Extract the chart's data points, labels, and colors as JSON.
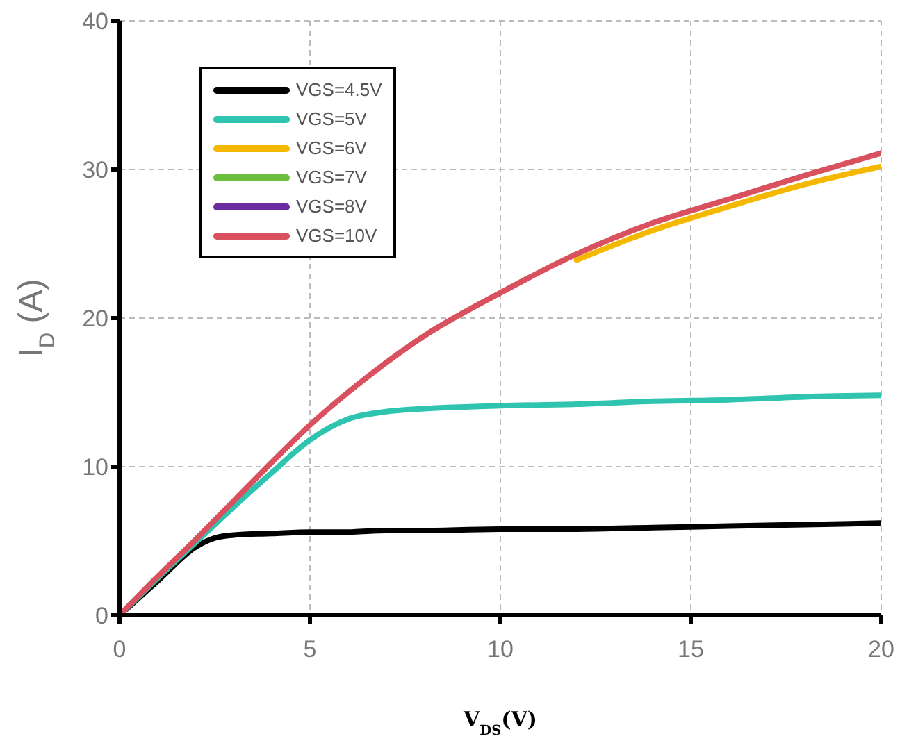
{
  "chart_data": {
    "type": "line",
    "xlabel": "V$_{DS}$(V)",
    "ylabel": "I$_{D}$ (A)",
    "x": [
      0,
      1,
      2,
      2.5,
      3,
      4,
      5,
      6,
      7,
      8,
      10,
      12,
      14,
      16,
      18,
      20
    ],
    "series": [
      {
        "name": "VGS=4.5V",
        "color": "#000000",
        "values": [
          0,
          2.3,
          4.6,
          5.2,
          5.4,
          5.5,
          5.6,
          5.6,
          5.7,
          5.7,
          5.8,
          5.8,
          5.9,
          6.0,
          6.1,
          6.2
        ]
      },
      {
        "name": "VGS=5V",
        "color": "#2ec4b0",
        "values": [
          0,
          2.5,
          4.9,
          6.1,
          7.3,
          9.6,
          11.8,
          13.2,
          13.7,
          13.9,
          14.1,
          14.2,
          14.4,
          14.5,
          14.7,
          14.8
        ]
      },
      {
        "name": "VGS=6V",
        "color": "#f5b800",
        "values": [
          null,
          null,
          null,
          null,
          null,
          null,
          null,
          null,
          null,
          null,
          null,
          23.9,
          25.9,
          27.5,
          29.0,
          30.2
        ]
      },
      {
        "name": "VGS=7V",
        "color": "#6cbf3c",
        "values": [
          null,
          null,
          null,
          null,
          null,
          null,
          null,
          null,
          null,
          null,
          null,
          null,
          null,
          null,
          null,
          null
        ]
      },
      {
        "name": "VGS=8V",
        "color": "#6a2ca0",
        "values": [
          null,
          null,
          null,
          null,
          null,
          null,
          null,
          null,
          null,
          null,
          null,
          null,
          null,
          null,
          null,
          null
        ]
      },
      {
        "name": "VGS=10V",
        "color": "#d9505e",
        "values": [
          0,
          2.6,
          5.1,
          6.4,
          7.7,
          10.3,
          12.8,
          15.0,
          17.0,
          18.8,
          21.7,
          24.3,
          26.4,
          28.0,
          29.6,
          31.1
        ]
      }
    ],
    "xlim": [
      0,
      20
    ],
    "xticks": [
      0,
      5,
      10,
      15,
      20
    ],
    "ylim": [
      0,
      40
    ],
    "yticks": [
      0,
      10,
      20,
      30,
      40
    ],
    "grid": true,
    "legend": "top left",
    "marker": "none",
    "line_style": "solid"
  }
}
